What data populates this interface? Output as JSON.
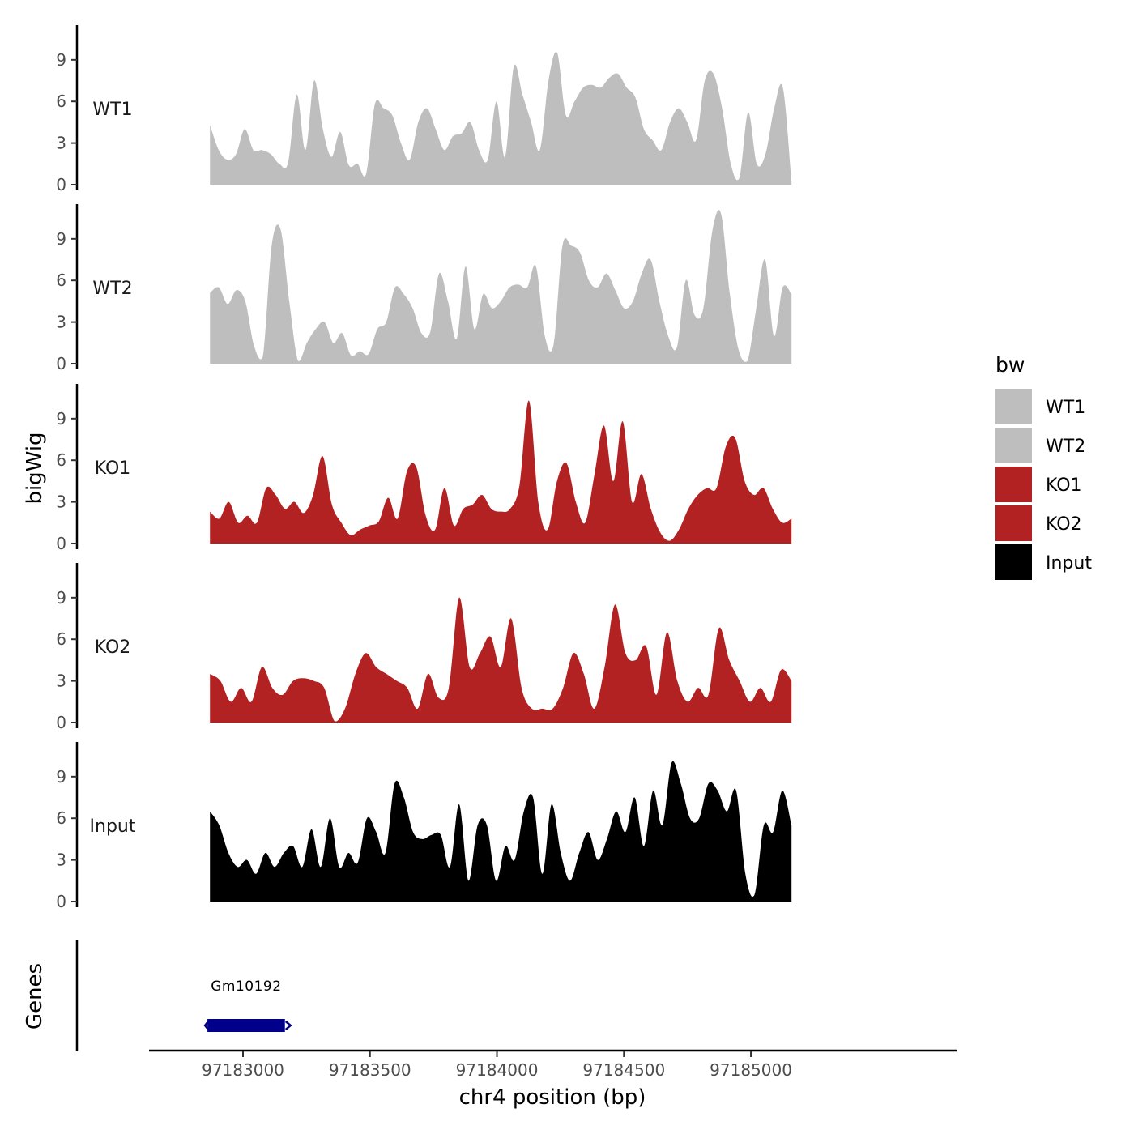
{
  "chart_data": {
    "type": "area",
    "title": "",
    "xlabel": "chr4 position (bp)",
    "ylabel": "bigWig",
    "genes_label": "Genes",
    "xlim": [
      97182630,
      97185810
    ],
    "ylim": [
      0,
      11.5
    ],
    "x_ticks": [
      97183000,
      97183500,
      97184000,
      97184500,
      97185000
    ],
    "x_tick_labels": [
      "97183000",
      "97183500",
      "97184000",
      "97184500",
      "97185000"
    ],
    "y_ticks": [
      0,
      3,
      6,
      9
    ],
    "y_tick_labels": [
      "0",
      "3",
      "6",
      "9"
    ],
    "legend": {
      "title": "bw",
      "placement": "right",
      "entries": [
        {
          "label": "WT1",
          "color": "#bebebe"
        },
        {
          "label": "WT2",
          "color": "#bebebe"
        },
        {
          "label": "KO1",
          "color": "#b22222"
        },
        {
          "label": "KO2",
          "color": "#b22222"
        },
        {
          "label": "Input",
          "color": "#000000"
        }
      ]
    },
    "x_start": 97182870,
    "x_end": 97185160,
    "series": [
      {
        "name": "WT1",
        "color": "#bebebe",
        "values": [
          4.3,
          2.5,
          1.8,
          2.2,
          4.0,
          2.5,
          2.5,
          2.2,
          1.5,
          1.6,
          6.5,
          2.5,
          7.5,
          4.0,
          2.0,
          3.8,
          1.4,
          1.5,
          0.8,
          5.8,
          5.5,
          5.0,
          3.0,
          1.8,
          4.5,
          5.5,
          4.0,
          2.5,
          3.5,
          3.7,
          4.5,
          2.5,
          1.8,
          6.0,
          2.0,
          8.5,
          6.5,
          4.5,
          2.5,
          7.5,
          9.5,
          5.0,
          6.0,
          7.0,
          7.2,
          7.0,
          7.7,
          8.0,
          7.0,
          6.3,
          4.0,
          3.2,
          2.5,
          4.5,
          5.5,
          4.5,
          3.2,
          7.5,
          8.0,
          5.5,
          1.5,
          0.5,
          5.2,
          1.5,
          2.2,
          5.5,
          7.0,
          0.2
        ]
      },
      {
        "name": "WT2",
        "color": "#bebebe",
        "values": [
          5.1,
          5.5,
          4.3,
          5.3,
          4.5,
          1.3,
          0.5,
          8.5,
          9.7,
          4.5,
          0.2,
          1.5,
          2.5,
          3.0,
          1.5,
          2.2,
          0.6,
          0.9,
          0.7,
          2.5,
          3.0,
          5.5,
          5.0,
          4.0,
          2.2,
          2.3,
          6.5,
          4.5,
          1.8,
          7.0,
          2.5,
          5.0,
          4.0,
          4.5,
          5.5,
          5.7,
          5.5,
          7.0,
          2.0,
          1.4,
          8.5,
          8.5,
          8.0,
          6.0,
          5.5,
          6.5,
          5.3,
          4.0,
          4.5,
          6.5,
          7.5,
          4.5,
          2.0,
          1.2,
          6.0,
          3.5,
          4.0,
          9.5,
          10.8,
          5.0,
          1.0,
          0.2,
          4.0,
          7.5,
          2.0,
          5.5,
          5.0
        ]
      },
      {
        "name": "KO1",
        "color": "#b22222",
        "values": [
          2.3,
          1.8,
          3.0,
          1.5,
          2.0,
          1.5,
          4.0,
          3.5,
          2.5,
          3.0,
          2.2,
          3.5,
          6.3,
          2.8,
          1.5,
          0.6,
          1.0,
          1.3,
          1.6,
          3.3,
          1.8,
          5.2,
          5.5,
          2.0,
          1.0,
          4.0,
          1.3,
          2.5,
          2.8,
          3.5,
          2.5,
          2.3,
          2.5,
          4.2,
          10.3,
          3.0,
          1.0,
          4.5,
          5.8,
          3.0,
          1.5,
          5.0,
          8.5,
          4.5,
          8.8,
          3.0,
          5.0,
          2.5,
          0.8,
          0.2,
          1.0,
          2.5,
          3.5,
          4.0,
          4.0,
          7.0,
          7.6,
          4.5,
          3.5,
          4.0,
          2.5,
          1.5,
          1.8
        ]
      },
      {
        "name": "KO2",
        "color": "#b22222",
        "values": [
          3.5,
          3.0,
          1.5,
          2.5,
          1.5,
          4.0,
          2.5,
          2.0,
          3.0,
          3.2,
          3.0,
          2.5,
          0.1,
          1.0,
          3.5,
          5.0,
          4.0,
          3.5,
          3.0,
          2.5,
          1.0,
          3.5,
          1.8,
          2.5,
          9.0,
          4.0,
          5.0,
          6.2,
          4.0,
          7.5,
          2.5,
          1.0,
          1.0,
          1.0,
          2.5,
          5.0,
          3.5,
          1.0,
          4.0,
          8.5,
          5.0,
          4.5,
          5.5,
          2.0,
          6.5,
          3.0,
          1.5,
          2.5,
          2.0,
          6.8,
          4.5,
          3.0,
          1.5,
          2.5,
          1.5,
          3.8,
          3.0
        ]
      },
      {
        "name": "Input",
        "color": "#000000",
        "values": [
          6.5,
          5.5,
          3.5,
          2.5,
          3.0,
          2.0,
          3.5,
          2.5,
          3.5,
          4.0,
          2.5,
          5.2,
          2.5,
          6.0,
          2.5,
          3.5,
          2.8,
          6.0,
          5.0,
          3.5,
          8.5,
          7.5,
          5.0,
          4.5,
          4.8,
          4.8,
          2.5,
          7.0,
          1.5,
          5.5,
          5.5,
          1.5,
          4.0,
          3.0,
          6.5,
          7.5,
          2.0,
          7.0,
          3.5,
          1.5,
          3.5,
          5.0,
          3.0,
          4.5,
          6.5,
          5.0,
          7.5,
          4.0,
          8.0,
          5.5,
          10.0,
          8.5,
          6.0,
          6.0,
          8.5,
          8.0,
          6.5,
          8.0,
          2.0,
          0.5,
          5.5,
          5.0,
          8.0,
          5.5
        ]
      }
    ],
    "genes": [
      {
        "name": "Gm10192",
        "start": 97182860,
        "end": 97183165,
        "strand": "+",
        "color": "#00008b"
      }
    ]
  }
}
